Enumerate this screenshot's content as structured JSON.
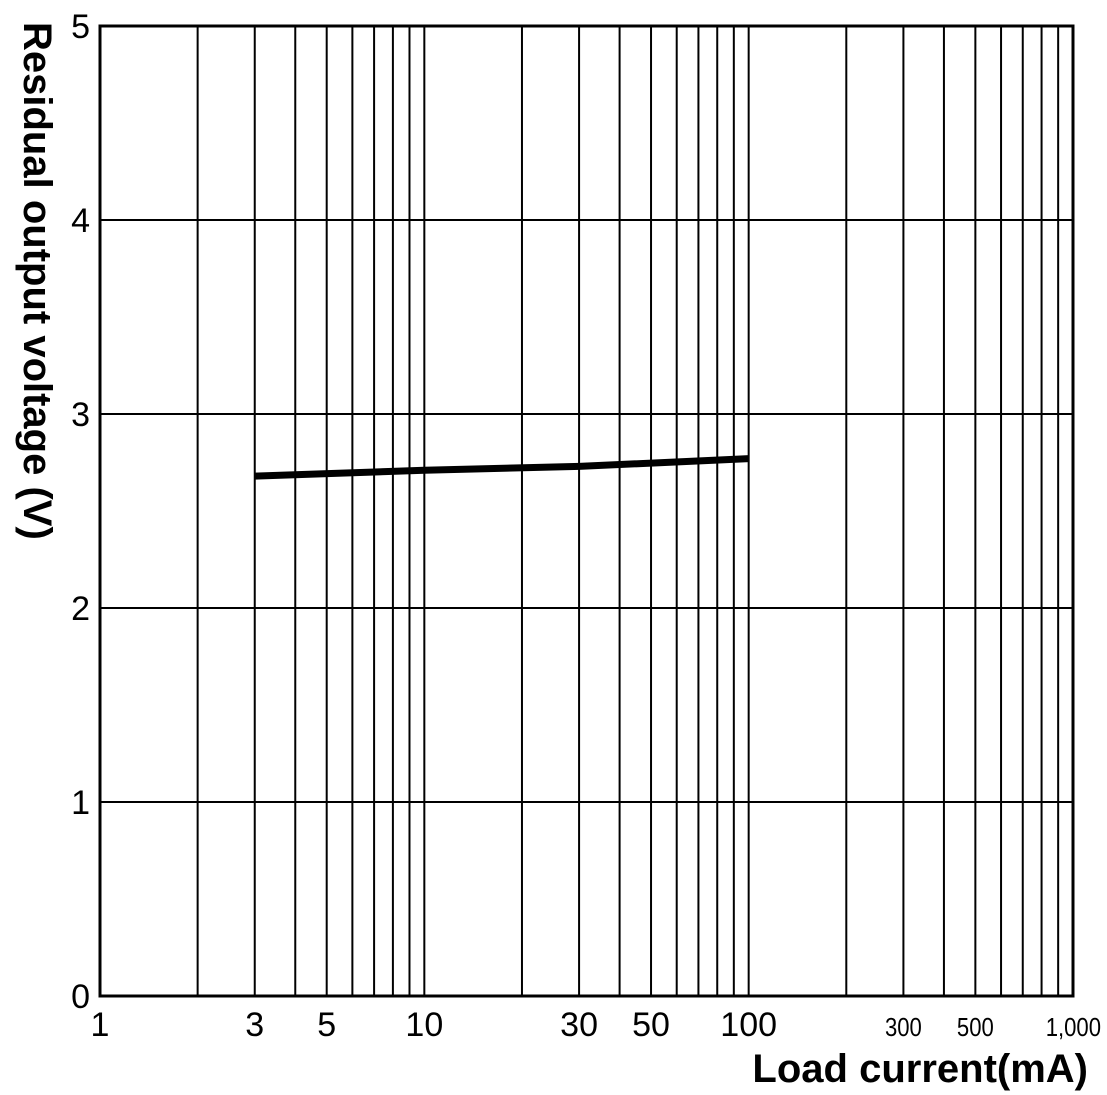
{
  "chart_data": {
    "type": "line",
    "xlabel": "Load current(mA)",
    "ylabel": "Residual output voltage (V)",
    "x_scale": "log",
    "xlim": [
      1,
      1000
    ],
    "ylim": [
      0,
      5
    ],
    "grid": true,
    "x_ticks": [
      {
        "value": 1,
        "label": "1"
      },
      {
        "value": 3,
        "label": "3"
      },
      {
        "value": 5,
        "label": "5"
      },
      {
        "value": 10,
        "label": "10"
      },
      {
        "value": 30,
        "label": "30"
      },
      {
        "value": 50,
        "label": "50"
      },
      {
        "value": 100,
        "label": "100"
      },
      {
        "value": 300,
        "label": "300"
      },
      {
        "value": 500,
        "label": "500"
      },
      {
        "value": 1000,
        "label": "1,000"
      }
    ],
    "y_ticks": [
      {
        "value": 0,
        "label": "0"
      },
      {
        "value": 1,
        "label": "1"
      },
      {
        "value": 2,
        "label": "2"
      },
      {
        "value": 3,
        "label": "3"
      },
      {
        "value": 4,
        "label": "4"
      },
      {
        "value": 5,
        "label": "5"
      }
    ],
    "series": [
      {
        "color": "#000000",
        "points": [
          {
            "x": 3,
            "y": 2.68
          },
          {
            "x": 10,
            "y": 2.71
          },
          {
            "x": 30,
            "y": 2.73
          },
          {
            "x": 100,
            "y": 2.77
          }
        ]
      }
    ]
  }
}
